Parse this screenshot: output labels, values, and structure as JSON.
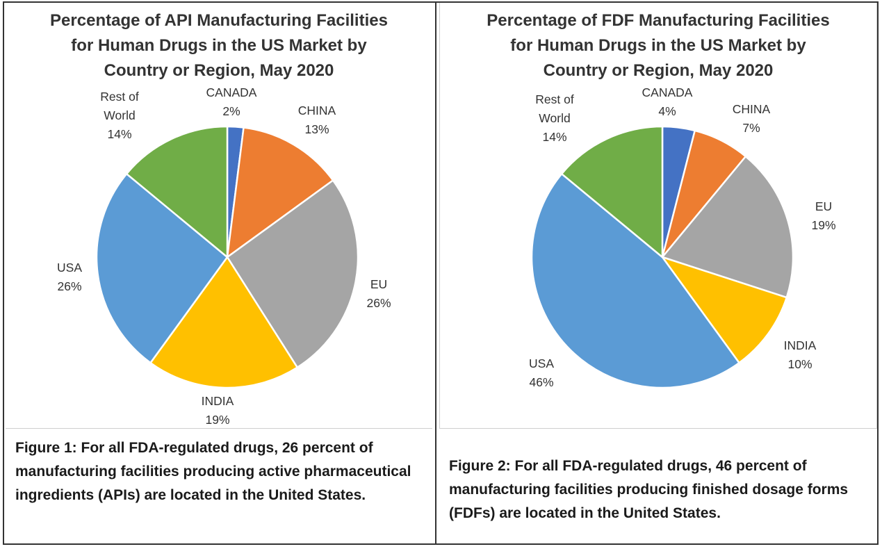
{
  "chart_data": [
    {
      "type": "pie",
      "title": [
        "Percentage of API Manufacturing Facilities",
        "for Human Drugs in the US Market by",
        "Country or Region, May 2020"
      ],
      "slices": [
        {
          "name": [
            "CANADA"
          ],
          "value": 2,
          "label": "2%",
          "color": "#4472C4"
        },
        {
          "name": [
            "CHINA"
          ],
          "value": 13,
          "label": "13%",
          "color": "#ED7D31"
        },
        {
          "name": [
            "EU"
          ],
          "value": 26,
          "label": "26%",
          "color": "#A5A5A5"
        },
        {
          "name": [
            "INDIA"
          ],
          "value": 19,
          "label": "19%",
          "color": "#FFC000"
        },
        {
          "name": [
            "USA"
          ],
          "value": 26,
          "label": "26%",
          "color": "#5B9BD5"
        },
        {
          "name": [
            "Rest of",
            "World"
          ],
          "value": 14,
          "label": "14%",
          "color": "#70AD47"
        }
      ],
      "caption": "Figure 1:  For all FDA-regulated drugs, 26 percent of manufacturing facilities producing active pharmaceutical  ingredients (APIs) are located in the United States."
    },
    {
      "type": "pie",
      "title": [
        "Percentage of FDF Manufacturing Facilities",
        "for Human Drugs in the US Market by",
        "Country or Region, May 2020"
      ],
      "slices": [
        {
          "name": [
            "CANADA"
          ],
          "value": 4,
          "label": "4%",
          "color": "#4472C4"
        },
        {
          "name": [
            "CHINA"
          ],
          "value": 7,
          "label": "7%",
          "color": "#ED7D31"
        },
        {
          "name": [
            "EU"
          ],
          "value": 19,
          "label": "19%",
          "color": "#A5A5A5"
        },
        {
          "name": [
            "INDIA"
          ],
          "value": 10,
          "label": "10%",
          "color": "#FFC000"
        },
        {
          "name": [
            "USA"
          ],
          "value": 46,
          "label": "46%",
          "color": "#5B9BD5"
        },
        {
          "name": [
            "Rest of",
            "World"
          ],
          "value": 14,
          "label": "14%",
          "color": "#70AD47"
        }
      ],
      "caption": "Figure 2: For all FDA-regulated drugs, 46 percent of manufacturing facilities producing finished dosage forms (FDFs) are located in the United States."
    }
  ]
}
